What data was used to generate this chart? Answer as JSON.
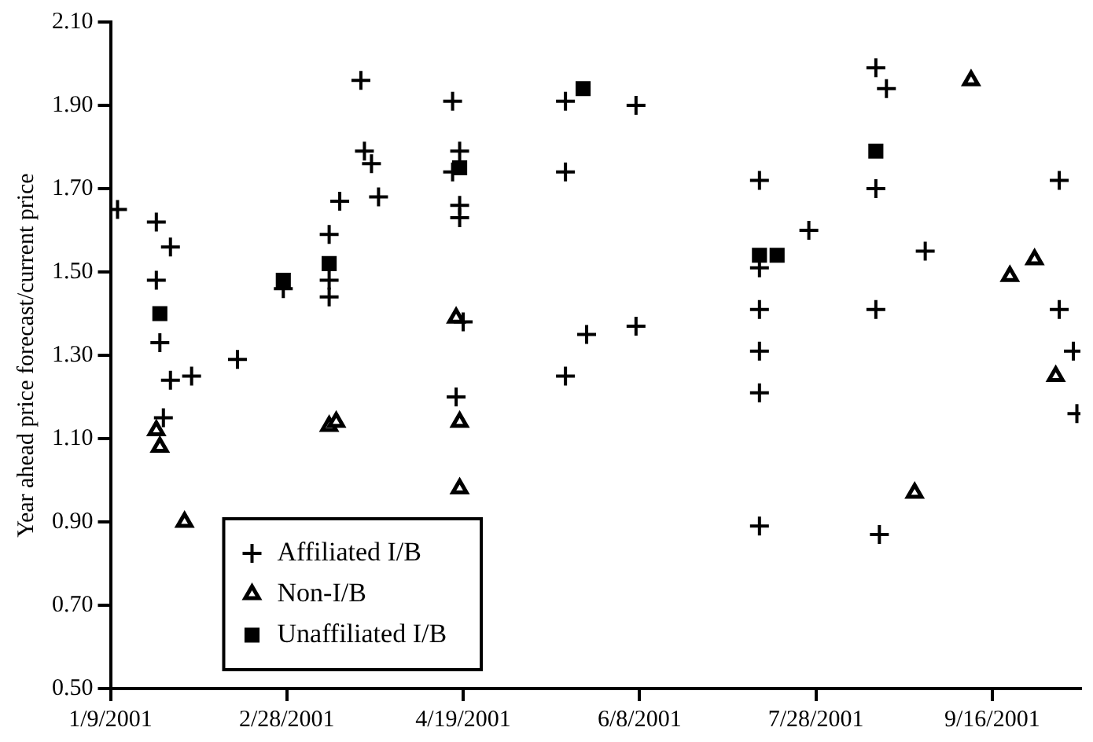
{
  "chart_data": {
    "type": "scatter",
    "ylabel": "Year ahead price forecast/current price",
    "xlim": [
      "2001-01-09",
      "2001-10-11"
    ],
    "xticks": [
      {
        "value": "2001-01-09",
        "label": "1/9/2001"
      },
      {
        "value": "2001-02-28",
        "label": "2/28/2001"
      },
      {
        "value": "2001-04-19",
        "label": "4/19/2001"
      },
      {
        "value": "2001-06-08",
        "label": "6/8/2001"
      },
      {
        "value": "2001-07-28",
        "label": "7/28/2001"
      },
      {
        "value": "2001-09-16",
        "label": "9/16/2001"
      }
    ],
    "ylim": [
      0.5,
      2.1
    ],
    "yticks": [
      {
        "value": 0.5,
        "label": "0.50"
      },
      {
        "value": 0.7,
        "label": "0.70"
      },
      {
        "value": 0.9,
        "label": "0.90"
      },
      {
        "value": 1.1,
        "label": "1.10"
      },
      {
        "value": 1.3,
        "label": "1.30"
      },
      {
        "value": 1.5,
        "label": "1.50"
      },
      {
        "value": 1.7,
        "label": "1.70"
      },
      {
        "value": 1.9,
        "label": "1.90"
      },
      {
        "value": 2.1,
        "label": "2.10"
      }
    ],
    "grid": false,
    "legend": "bottom left",
    "series": [
      {
        "name": "Affiliated I/B",
        "color": "#000000",
        "marker": "cross",
        "x": [
          "2001-01-11",
          "2001-01-22",
          "2001-01-26",
          "2001-01-22",
          "2001-01-23",
          "2001-01-26",
          "2001-02-01",
          "2001-01-24",
          "2001-02-14",
          "2001-02-27",
          "2001-03-21",
          "2001-03-22",
          "2001-03-24",
          "2001-03-15",
          "2001-03-26",
          "2001-03-12",
          "2001-03-12",
          "2001-03-12",
          "2001-04-16",
          "2001-04-18",
          "2001-04-16",
          "2001-04-18",
          "2001-04-18",
          "2001-04-19",
          "2001-04-17",
          "2001-05-18",
          "2001-06-07",
          "2001-05-18",
          "2001-05-24",
          "2001-06-07",
          "2001-05-18",
          "2001-07-12",
          "2001-07-12",
          "2001-07-12",
          "2001-07-12",
          "2001-07-12",
          "2001-07-12",
          "2001-08-15",
          "2001-08-14",
          "2001-08-17",
          "2001-08-14",
          "2001-07-26",
          "2001-08-28",
          "2001-08-14",
          "2001-10-05",
          "2001-10-05",
          "2001-10-09",
          "2001-10-10"
        ],
        "values": [
          1.65,
          1.62,
          1.56,
          1.48,
          1.33,
          1.24,
          1.25,
          1.15,
          1.29,
          1.46,
          1.96,
          1.79,
          1.76,
          1.67,
          1.68,
          1.59,
          1.48,
          1.44,
          1.91,
          1.79,
          1.74,
          1.66,
          1.63,
          1.38,
          1.2,
          1.91,
          1.9,
          1.74,
          1.35,
          1.37,
          1.25,
          1.72,
          1.51,
          1.41,
          1.31,
          1.21,
          0.89,
          0.87,
          1.99,
          1.94,
          1.7,
          1.6,
          1.55,
          1.41,
          1.72,
          1.41,
          1.31,
          1.16
        ]
      },
      {
        "name": "Non-I/B",
        "color": "#000000",
        "marker": "triangle",
        "x": [
          "2001-01-22",
          "2001-01-23",
          "2001-01-30",
          "2001-03-12",
          "2001-03-14",
          "2001-04-17",
          "2001-04-18",
          "2001-04-18",
          "2001-08-25",
          "2001-09-10",
          "2001-09-21",
          "2001-09-28",
          "2001-10-04"
        ],
        "values": [
          1.12,
          1.08,
          0.9,
          1.13,
          1.14,
          1.39,
          1.14,
          0.98,
          0.97,
          1.96,
          1.49,
          1.53,
          1.25
        ]
      },
      {
        "name": "Unaffiliated I/B",
        "color": "#000000",
        "marker": "square",
        "x": [
          "2001-01-23",
          "2001-02-27",
          "2001-03-12",
          "2001-04-18",
          "2001-05-23",
          "2001-07-12",
          "2001-07-17",
          "2001-08-14"
        ],
        "values": [
          1.4,
          1.48,
          1.52,
          1.75,
          1.94,
          1.54,
          1.54,
          1.79
        ]
      }
    ]
  }
}
